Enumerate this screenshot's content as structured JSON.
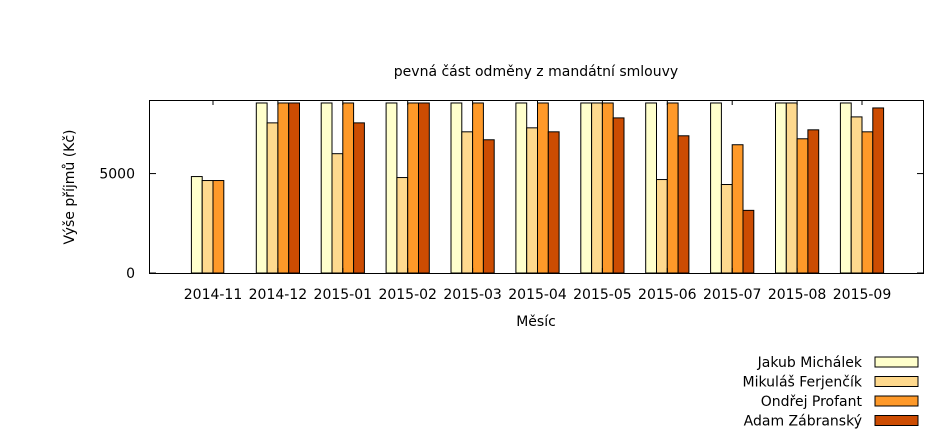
{
  "chart_data": {
    "type": "bar",
    "title": "pevná část odměny z mandátní smlouvy",
    "xlabel": "Měsíc",
    "ylabel": "Výše příjmů (Kč)",
    "ylim": [
      0,
      8700
    ],
    "yticks": [
      0,
      5000
    ],
    "legend_position": "bottom-right",
    "categories": [
      "2014-11",
      "2014-12",
      "2015-01",
      "2015-02",
      "2015-03",
      "2015-04",
      "2015-05",
      "2015-06",
      "2015-07",
      "2015-08",
      "2015-09"
    ],
    "series": [
      {
        "name": "Jakub Michálek",
        "color": "#ffffcc",
        "values": [
          4850,
          8550,
          8550,
          8550,
          8550,
          8550,
          8550,
          8550,
          8550,
          8550,
          8550
        ]
      },
      {
        "name": "Mikuláš Ferjenčík",
        "color": "#fed98e",
        "values": [
          4650,
          7550,
          6000,
          4800,
          7100,
          7300,
          8550,
          4700,
          4450,
          8550,
          7850
        ]
      },
      {
        "name": "Ondřej Profant",
        "color": "#fe9929",
        "values": [
          4650,
          8550,
          8550,
          8550,
          8550,
          8550,
          8550,
          8550,
          6450,
          6750,
          7100
        ]
      },
      {
        "name": "Adam Zábranský",
        "color": "#cc4c02",
        "values": [
          null,
          8550,
          7550,
          8550,
          6700,
          7100,
          7800,
          6900,
          3150,
          7200,
          8300
        ]
      }
    ]
  }
}
